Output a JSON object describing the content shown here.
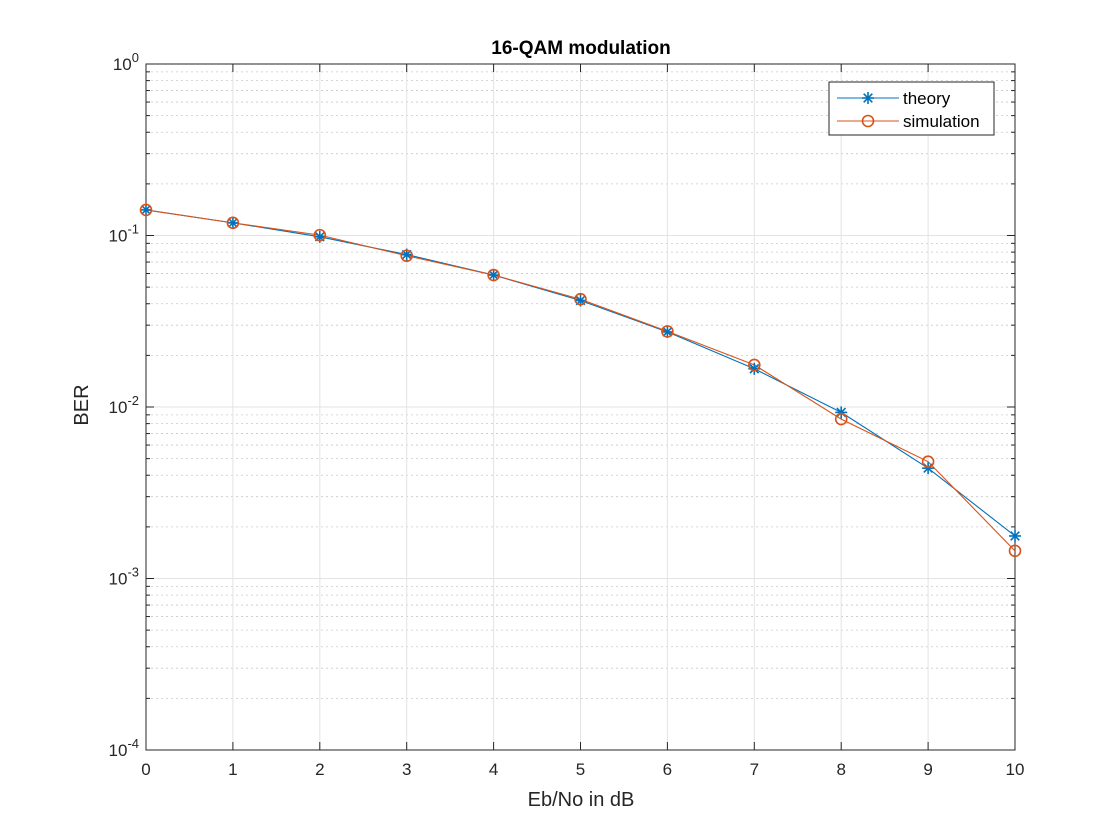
{
  "chart_data": {
    "type": "line",
    "title": "16-QAM modulation",
    "xlabel": "Eb/No in dB",
    "ylabel": "BER",
    "x": [
      0,
      1,
      2,
      3,
      4,
      5,
      6,
      7,
      8,
      9,
      10
    ],
    "xlim": [
      0,
      10
    ],
    "ylim": [
      0.0001,
      1
    ],
    "yscale": "log",
    "xticks": [
      "0",
      "1",
      "2",
      "3",
      "4",
      "5",
      "6",
      "7",
      "8",
      "9",
      "10"
    ],
    "yticks": [
      {
        "base": "10",
        "exp": "-4",
        "value": 0.0001
      },
      {
        "base": "10",
        "exp": "-3",
        "value": 0.001
      },
      {
        "base": "10",
        "exp": "-2",
        "value": 0.01
      },
      {
        "base": "10",
        "exp": "-1",
        "value": 0.1
      },
      {
        "base": "10",
        "exp": "0",
        "value": 1
      }
    ],
    "grid": true,
    "minor_grid": true,
    "legend_position": "top-right",
    "series": [
      {
        "name": "theory",
        "color": "#0072BD",
        "marker": "asterisk",
        "values": [
          0.141,
          0.1185,
          0.0983,
          0.0774,
          0.0588,
          0.0418,
          0.0274,
          0.0167,
          0.0093,
          0.0044,
          0.00177
        ]
      },
      {
        "name": "simulation",
        "color": "#D95319",
        "marker": "circle",
        "values": [
          0.141,
          0.1185,
          0.1005,
          0.0762,
          0.0588,
          0.0425,
          0.0276,
          0.0176,
          0.0085,
          0.0048,
          0.00145
        ]
      }
    ]
  }
}
